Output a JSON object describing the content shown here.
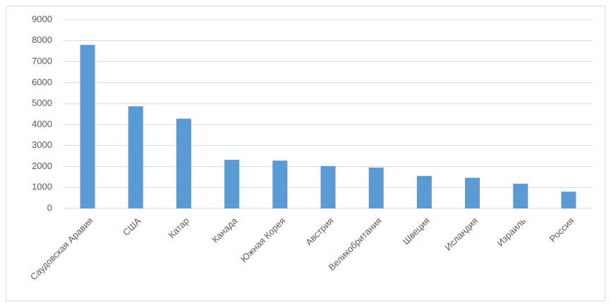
{
  "chart_data": {
    "type": "bar",
    "categories": [
      "Саудовская Аравия",
      "США",
      "Катар",
      "Канада",
      "Южная Корея",
      "Австрия",
      "Великобритания",
      "Швеция",
      "Исландия",
      "Израиль",
      "Россия"
    ],
    "values": [
      7800,
      4870,
      4280,
      2320,
      2280,
      2020,
      1950,
      1550,
      1460,
      1180,
      800
    ],
    "color": "#5b9bd5",
    "ylim": [
      0,
      9000
    ],
    "yticks": [
      0,
      1000,
      2000,
      3000,
      4000,
      5000,
      6000,
      7000,
      8000,
      9000
    ],
    "grid": true
  }
}
